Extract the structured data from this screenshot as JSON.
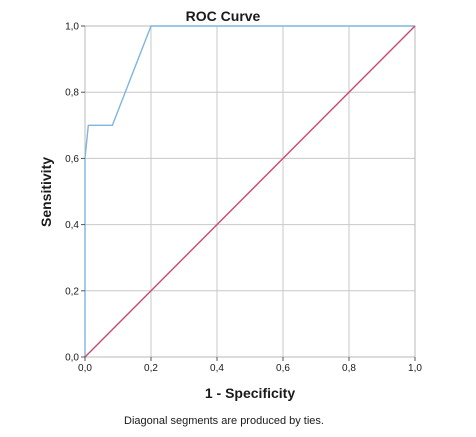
{
  "chart_data": {
    "type": "line",
    "title": "ROC Curve",
    "xlabel": "1 - Specificity",
    "ylabel": "Sensitivity",
    "xlim": [
      0,
      1
    ],
    "ylim": [
      0,
      1
    ],
    "x_ticks": [
      "0,0",
      "0,2",
      "0,4",
      "0,6",
      "0,8",
      "1,0"
    ],
    "y_ticks": [
      "0,0",
      "0,2",
      "0,4",
      "0,6",
      "0,8",
      "1,0"
    ],
    "grid": true,
    "series": [
      {
        "color": "#7eb5e0",
        "x": [
          0,
          0,
          0.005,
          0.01,
          0.083,
          0.2,
          1.0
        ],
        "y": [
          0,
          0.6,
          0.65,
          0.7,
          0.7,
          1.0,
          1.0
        ]
      },
      {
        "color": "#c94a6e",
        "x": [
          0,
          1
        ],
        "y": [
          0,
          1
        ]
      }
    ],
    "footnote": "Diagonal segments are produced by ties."
  }
}
